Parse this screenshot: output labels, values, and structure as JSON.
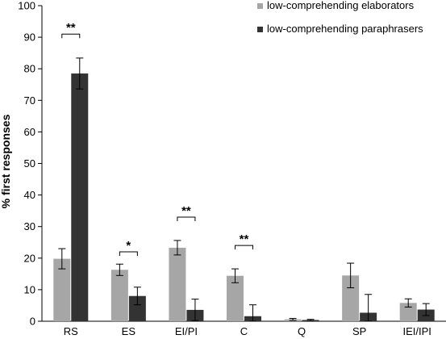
{
  "chart_data": {
    "type": "bar",
    "ylabel": "% first responses",
    "xlabel": "",
    "ylim": [
      0,
      100
    ],
    "yticks": [
      0,
      10,
      20,
      30,
      40,
      50,
      60,
      70,
      80,
      90,
      100
    ],
    "grid": false,
    "legend_position": "top-right",
    "categories": [
      "RS",
      "ES",
      "EI/PI",
      "C",
      "Q",
      "SP",
      "IEI/IPI"
    ],
    "series": [
      {
        "name": "low-comprehending elaborators",
        "color": "#a6a6a6",
        "values": [
          19.8,
          16.3,
          23.3,
          14.4,
          0.6,
          14.5,
          5.8
        ],
        "errors": [
          3.2,
          1.8,
          2.3,
          2.2,
          0.3,
          3.9,
          1.3
        ]
      },
      {
        "name": "low-comprehending paraphrasers",
        "color": "#333333",
        "values": [
          78.5,
          8.0,
          3.6,
          1.6,
          0.4,
          2.7,
          3.7
        ],
        "errors": [
          4.9,
          2.8,
          3.4,
          3.6,
          0.2,
          5.8,
          1.9
        ]
      }
    ],
    "annotations": [
      {
        "category": "RS",
        "text": "**",
        "y": 91
      },
      {
        "category": "ES",
        "text": "*",
        "y": 22
      },
      {
        "category": "EI/PI",
        "text": "**",
        "y": 33
      },
      {
        "category": "C",
        "text": "**",
        "y": 24
      }
    ]
  }
}
